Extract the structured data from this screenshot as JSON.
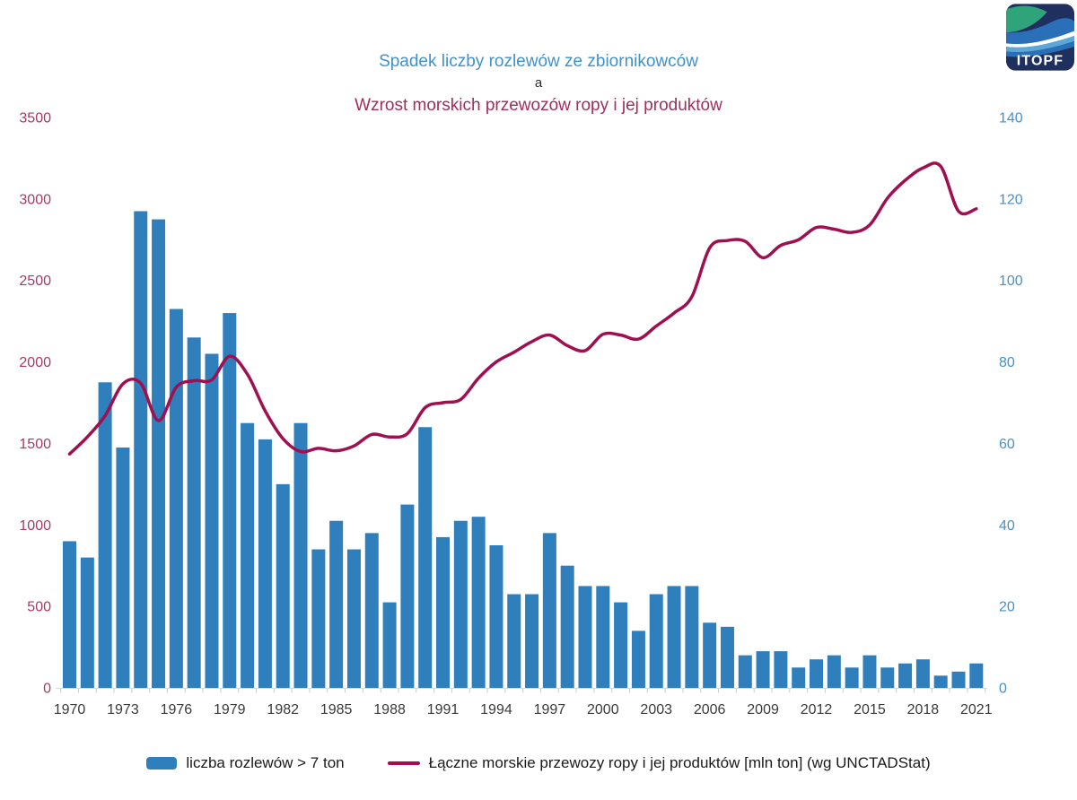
{
  "logo": {
    "text": "ITOPF"
  },
  "chart_data": {
    "type": "bar+line combo",
    "title_lines": [
      "Spadek liczby rozlewów ze zbiornikowców",
      "a",
      "Wzrost morskich przewozów ropy i jej produktów"
    ],
    "title_colors": [
      "#4191c7",
      "#2b2b2b",
      "#a12d60"
    ],
    "years": [
      1970,
      1971,
      1972,
      1973,
      1974,
      1975,
      1976,
      1977,
      1978,
      1979,
      1980,
      1981,
      1982,
      1983,
      1984,
      1985,
      1986,
      1987,
      1988,
      1989,
      1990,
      1991,
      1992,
      1993,
      1994,
      1995,
      1996,
      1997,
      1998,
      1999,
      2000,
      2001,
      2002,
      2003,
      2004,
      2005,
      2006,
      2007,
      2008,
      2009,
      2010,
      2011,
      2012,
      2013,
      2014,
      2015,
      2016,
      2017,
      2018,
      2019,
      2020,
      2021
    ],
    "x_label_every": 3,
    "grid": "off",
    "series": [
      {
        "name": "liczba rozlewów > 7 ton",
        "type": "bar",
        "axis": "right",
        "color": "#2e7fbc",
        "values": [
          36,
          32,
          75,
          59,
          117,
          115,
          93,
          86,
          82,
          92,
          65,
          61,
          50,
          65,
          34,
          41,
          34,
          38,
          21,
          45,
          64,
          37,
          41,
          42,
          35,
          23,
          23,
          38,
          30,
          25,
          25,
          21,
          14,
          23,
          25,
          25,
          16,
          15,
          8,
          9,
          9,
          5,
          7,
          8,
          5,
          8,
          5,
          6,
          7,
          3,
          4,
          6
        ]
      },
      {
        "name": "Łączne morskie przewozy ropy i jej produktów [mln ton] (wg UNCTADStat)",
        "type": "line",
        "axis": "left",
        "color": "#a00f50",
        "values": [
          1435,
          1540,
          1670,
          1865,
          1870,
          1640,
          1845,
          1885,
          1890,
          2035,
          1925,
          1700,
          1530,
          1450,
          1470,
          1455,
          1485,
          1555,
          1540,
          1560,
          1720,
          1750,
          1770,
          1900,
          2000,
          2060,
          2125,
          2165,
          2100,
          2070,
          2170,
          2165,
          2140,
          2220,
          2300,
          2400,
          2700,
          2745,
          2740,
          2640,
          2715,
          2750,
          2825,
          2815,
          2795,
          2840,
          3005,
          3115,
          3190,
          3200,
          2925,
          2940
        ]
      }
    ],
    "left_axis": {
      "min": 0,
      "max": 3500,
      "step": 500,
      "label_color": "#a43a66"
    },
    "right_axis": {
      "min": 0,
      "max": 140,
      "step": 20,
      "label_color": "#4890c8"
    },
    "x_axis": {
      "label_color": "#3a3a3a",
      "tick_color": "#cccccc",
      "baseline_color": "#d9d9d9"
    }
  },
  "legend": {
    "bar_label": "liczba rozlewów > 7 ton",
    "line_label": "Łączne morskie przewozy ropy i jej produktów [mln ton] (wg UNCTADStat)"
  }
}
